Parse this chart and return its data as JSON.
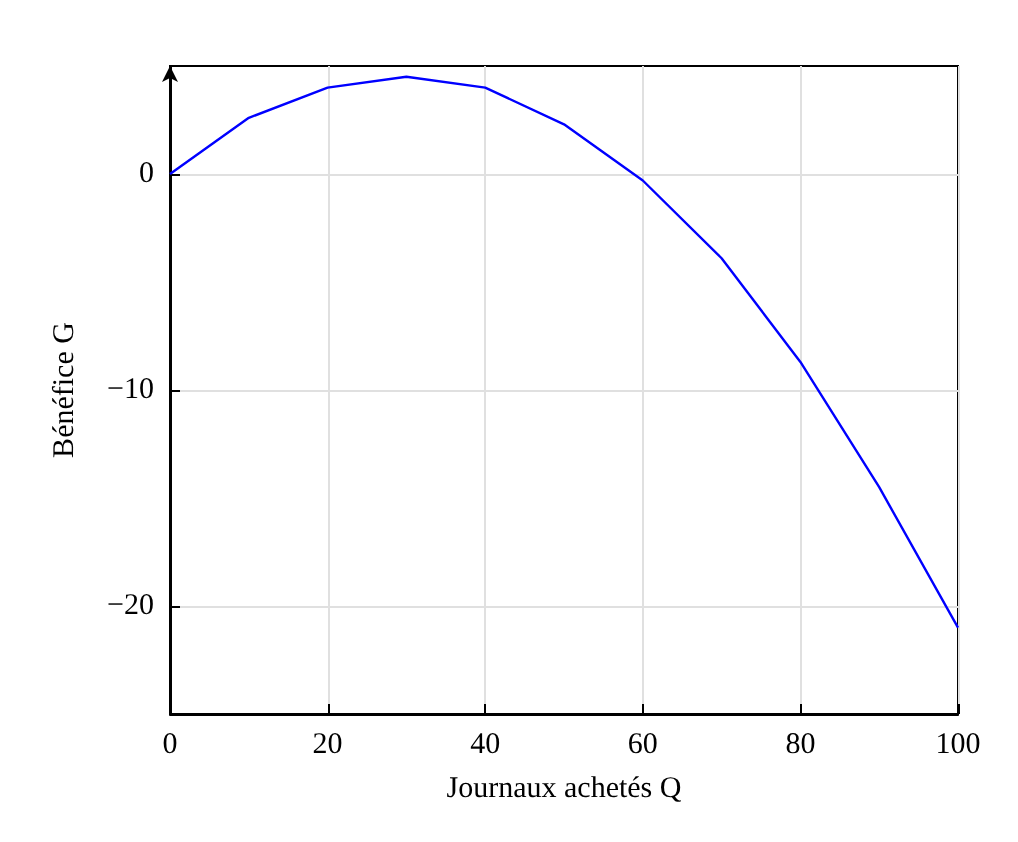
{
  "chart_data": {
    "type": "line",
    "xlabel": "Journaux achetés Q",
    "ylabel": "Bénéfice G",
    "x": [
      0,
      10,
      20,
      30,
      40,
      50,
      60,
      70,
      80,
      90,
      100
    ],
    "series": [
      {
        "color": "#0000ff",
        "values": [
          0,
          2.6,
          4,
          4.5,
          4,
          2.3,
          -0.3,
          -3.9,
          -8.7,
          -14.5,
          -21
        ]
      }
    ],
    "xlim": [
      0,
      100
    ],
    "xticks": [
      0,
      20,
      40,
      60,
      80,
      100
    ],
    "ylim": [
      -25,
      5
    ],
    "yticks": [
      {
        "value": -20,
        "label": "−20"
      },
      {
        "value": -10,
        "label": "−10"
      },
      {
        "value": 0,
        "label": "0"
      }
    ],
    "grid": true,
    "marker": "none",
    "line_style": "solid"
  }
}
